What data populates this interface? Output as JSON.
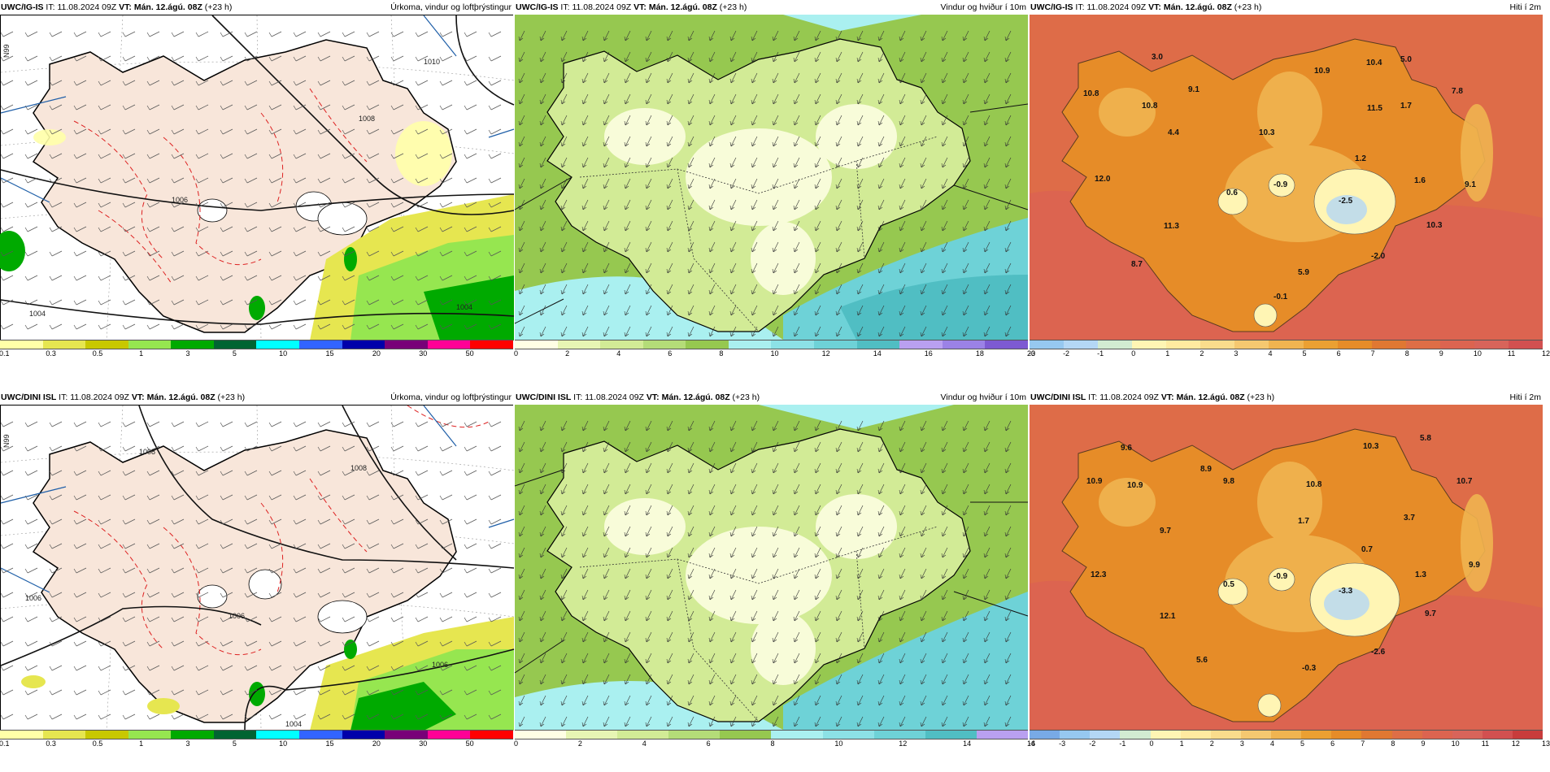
{
  "rows": [
    {
      "model": "UWC/IG-IS",
      "it_label": "IT:",
      "it_value": "11.08.2024 09Z",
      "vt_label": "VT:",
      "vt_value": "Mán. 12.ágú. 08Z",
      "lead": "(+23 h)"
    },
    {
      "model": "UWC/DINI ISL",
      "it_label": "IT:",
      "it_value": "11.08.2024 09Z",
      "vt_label": "VT:",
      "vt_value": "Mán. 12.ágú. 08Z",
      "lead": "(+23 h)"
    }
  ],
  "panel_titles": {
    "precip": "Úrkoma, vindur og loftþrýstingur",
    "wind": "Vindur og hviður í 10m",
    "temp": "Hiti í 2m"
  },
  "colors": {
    "land_pink": "#f8e6da",
    "sea_white": "#ffffff",
    "precip_scale": [
      "#ffffa8",
      "#e6e650",
      "#c8c800",
      "#96e650",
      "#00aa00",
      "#006432",
      "#00ffff",
      "#3264ff",
      "#0000aa",
      "#780078",
      "#ff0096",
      "#ff0000"
    ],
    "wind_scale": [
      "#ffffe5",
      "#e7f5b4",
      "#d2eb96",
      "#b4dc78",
      "#96c850",
      "#aaf0f0",
      "#8ce1e6",
      "#6ed2d7",
      "#50bec3",
      "#b9a0f0",
      "#9b82e6",
      "#7d5ad2"
    ],
    "temp_scale_top": [
      "#96c8f0",
      "#b4d7f5",
      "#d2ebd2",
      "#fff5b4",
      "#ffeaa0",
      "#fadc8c",
      "#f5c870",
      "#f0b450",
      "#eba032",
      "#e68c28",
      "#e07832",
      "#de6e46",
      "#dc6450",
      "#d8645a",
      "#d25050"
    ],
    "temp_scale_bot": [
      "#78aae6",
      "#96c8f0",
      "#b4d7f5",
      "#d2ebd2",
      "#fff5b4",
      "#ffeaa0",
      "#fadc8c",
      "#f5c870",
      "#f0b450",
      "#eba032",
      "#e68c28",
      "#e07832",
      "#de6e46",
      "#dc6450",
      "#d8645a",
      "#d25050",
      "#c83c3c"
    ]
  },
  "colorbars": {
    "precip_ticks": [
      "0.1",
      "0.3",
      "0.5",
      "1",
      "3",
      "5",
      "10",
      "15",
      "20",
      "30",
      "50"
    ],
    "wind_ticks_top": [
      "0",
      "2",
      "4",
      "6",
      "8",
      "10",
      "12",
      "14",
      "16",
      "18",
      "20"
    ],
    "wind_ticks_bot": [
      "0",
      "2",
      "4",
      "6",
      "8",
      "10",
      "12",
      "14",
      "16"
    ],
    "temp_ticks_top": [
      "-3",
      "-2",
      "-1",
      "0",
      "1",
      "2",
      "3",
      "4",
      "5",
      "6",
      "7",
      "8",
      "9",
      "10",
      "11",
      "12"
    ],
    "temp_ticks_bot": [
      "-4",
      "-3",
      "-2",
      "-1",
      "0",
      "1",
      "2",
      "3",
      "4",
      "5",
      "6",
      "7",
      "8",
      "9",
      "10",
      "11",
      "12",
      "13"
    ]
  },
  "isobar_labels_top": [
    "1010",
    "1008",
    "1006",
    "1004",
    "1004"
  ],
  "isobar_labels_bot": [
    "1008",
    "1008",
    "1006",
    "1006",
    "1006",
    "1004"
  ],
  "lat_labels": [
    "N99",
    "N99"
  ],
  "temp_values_top": [
    "3.0",
    "10.9",
    "10.4",
    "5.0",
    "7.8",
    "10.8",
    "10.8",
    "9.1",
    "11.5",
    "1.7",
    "4.4",
    "10.3",
    "1.2",
    "12.0",
    "0.6",
    "-0.9",
    "-2.5",
    "1.6",
    "9.1",
    "11.3",
    "10.3",
    "-2.0",
    "8.7",
    "5.9",
    "-0.1"
  ],
  "temp_values_bot": [
    "9.6",
    "10.3",
    "5.8",
    "8.9",
    "10.9",
    "10.9",
    "9.8",
    "10.8",
    "10.7",
    "1.7",
    "3.7",
    "9.7",
    "0.7",
    "12.3",
    "0.5",
    "-0.9",
    "-3.3",
    "1.3",
    "9.9",
    "12.1",
    "9.7",
    "-2.6",
    "5.6",
    "-0.3"
  ]
}
